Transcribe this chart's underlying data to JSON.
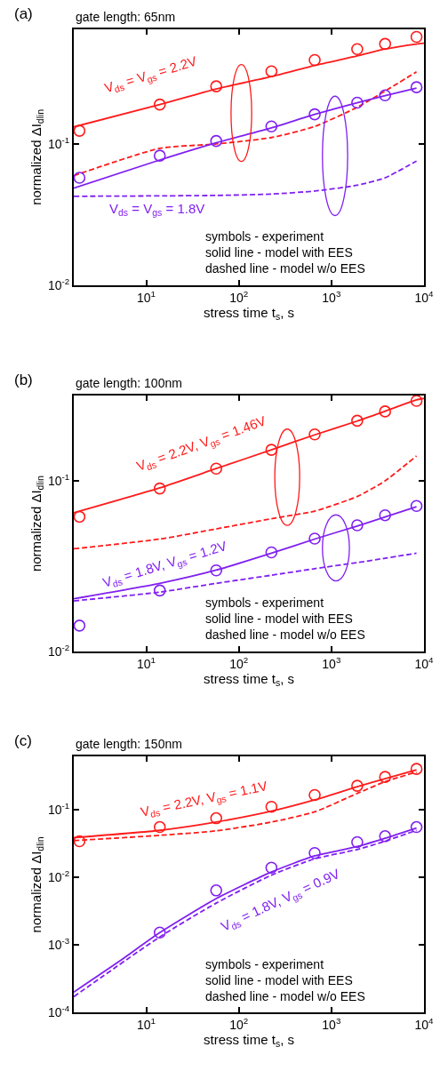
{
  "chart_data": [
    {
      "type": "scatter",
      "title": "gate length: 65nm",
      "xlabel": "stress time t$_{s}$, s",
      "ylabel": "normalized ΔI$_{dlin}$",
      "log": "xy",
      "xlim": [
        1.65,
        10000
      ],
      "xticks": [
        {
          "value": 10,
          "label": "10$^{1}$"
        },
        {
          "value": 100,
          "label": "10$^{2}$"
        },
        {
          "value": 1000,
          "label": "10$^{3}$"
        },
        {
          "value": 10000,
          "label": "10$^{4}$"
        }
      ],
      "ylim": [
        0.01,
        0.65
      ],
      "yticks": [
        {
          "value": 0.01,
          "label": "10$^{-2}$"
        },
        {
          "value": 0.1,
          "label": "10$^{-1}$"
        }
      ],
      "series": [
        {
          "marker": "circle",
          "color": "#ff1a1a",
          "x": [
            1.9,
            14,
            57,
            225,
            660,
            1900,
            3800,
            8300
          ],
          "values": [
            0.124,
            0.19,
            0.256,
            0.327,
            0.393,
            0.469,
            0.511,
            0.573
          ]
        },
        {
          "type": "line",
          "line_style": "solid",
          "color": "#ff1a1a",
          "x": [
            1.65,
            14,
            57,
            225,
            660,
            1900,
            3800,
            8300,
            10000
          ],
          "values": [
            0.132,
            0.19,
            0.245,
            0.3,
            0.36,
            0.42,
            0.47,
            0.51,
            0.516
          ]
        },
        {
          "type": "line",
          "line_style": "dashed",
          "color": "#ff1a1a",
          "x": [
            1.65,
            14,
            57,
            225,
            660,
            1900,
            3800,
            8300
          ],
          "values": [
            0.0596,
            0.093,
            0.1,
            0.111,
            0.133,
            0.182,
            0.237,
            0.324
          ]
        },
        {
          "marker": "circle",
          "color": "#8020f0",
          "x": [
            1.9,
            14,
            57,
            225,
            660,
            1900,
            3800,
            8300
          ],
          "values": [
            0.0576,
            0.0826,
            0.105,
            0.133,
            0.162,
            0.196,
            0.221,
            0.252
          ]
        },
        {
          "type": "line",
          "line_style": "solid",
          "color": "#8020f0",
          "x": [
            1.65,
            14,
            57,
            225,
            660,
            1900,
            3800,
            8300
          ],
          "values": [
            0.0487,
            0.077,
            0.102,
            0.13,
            0.162,
            0.196,
            0.22,
            0.249
          ]
        },
        {
          "type": "line",
          "line_style": "dashed",
          "color": "#8020f0",
          "x": [
            1.65,
            57,
            225,
            660,
            1900,
            3800,
            8300
          ],
          "values": [
            0.0426,
            0.0432,
            0.0442,
            0.0464,
            0.051,
            0.0576,
            0.0757
          ]
        }
      ],
      "annotations": [
        "(a)",
        "V$_{ds}$ = V$_{gs}$ = 2.2V",
        "V$_{ds}$ = V$_{gs}$ = 1.8V",
        "symbols - experiment\nsolid line - model with EES\ndashed line - model w/o EES"
      ]
    },
    {
      "type": "scatter",
      "title": "gate length: 100nm",
      "xlabel": "stress time t$_{s}$, s",
      "ylabel": "normalized ΔI$_{dlin}$",
      "log": "xy",
      "xlim": [
        1.65,
        10000
      ],
      "xticks": [
        {
          "value": 10,
          "label": "10$^{1}$"
        },
        {
          "value": 100,
          "label": "10$^{2}$"
        },
        {
          "value": 1000,
          "label": "10$^{3}$"
        },
        {
          "value": 10000,
          "label": "10$^{4}$"
        }
      ],
      "ylim": [
        0.01,
        0.316
      ],
      "yticks": [
        {
          "value": 0.01,
          "label": "10$^{-2}$"
        },
        {
          "value": 0.1,
          "label": "10$^{-1}$"
        }
      ],
      "series": [
        {
          "marker": "circle",
          "color": "#ff1a1a",
          "x": [
            1.9,
            14,
            57,
            225,
            660,
            1900,
            3800,
            8300
          ],
          "values": [
            0.0616,
            0.0902,
            0.118,
            0.152,
            0.187,
            0.225,
            0.255,
            0.294
          ]
        },
        {
          "type": "line",
          "line_style": "solid",
          "color": "#ff1a1a",
          "x": [
            1.65,
            14,
            57,
            225,
            660,
            1900,
            3800,
            8300,
            10000
          ],
          "values": [
            0.065,
            0.091,
            0.118,
            0.152,
            0.186,
            0.224,
            0.256,
            0.298,
            0.304
          ]
        },
        {
          "type": "line",
          "line_style": "dashed",
          "color": "#ff1a1a",
          "x": [
            1.65,
            14,
            57,
            225,
            660,
            1900,
            3800,
            8300
          ],
          "values": [
            0.04,
            0.0456,
            0.0523,
            0.06,
            0.0665,
            0.081,
            0.1,
            0.14
          ]
        },
        {
          "marker": "circle",
          "color": "#8020f0",
          "x": [
            1.9,
            14,
            57,
            225,
            660,
            1900,
            3800,
            8300
          ],
          "values": [
            0.0142,
            0.0228,
            0.0299,
            0.0381,
            0.0459,
            0.0549,
            0.0629,
            0.0713
          ]
        },
        {
          "type": "line",
          "line_style": "solid",
          "color": "#8020f0",
          "x": [
            1.65,
            14,
            57,
            225,
            660,
            1900,
            3800,
            8300
          ],
          "values": [
            0.0204,
            0.0251,
            0.03,
            0.0377,
            0.0456,
            0.0544,
            0.0614,
            0.0705
          ]
        },
        {
          "type": "line",
          "line_style": "dashed",
          "color": "#8020f0",
          "x": [
            1.65,
            14,
            57,
            225,
            660,
            1900,
            3800,
            8300
          ],
          "values": [
            0.0198,
            0.0223,
            0.0251,
            0.028,
            0.0306,
            0.0332,
            0.0352,
            0.0377
          ]
        }
      ],
      "annotations": [
        "(b)",
        "V$_{ds}$ = 2.2V, V$_{gs}$ = 1.46V",
        "V$_{ds}$ = 1.8V, V$_{gs}$ = 1.2V",
        "symbols - experiment\nsolid line - model with EES\ndashed line - model w/o EES"
      ]
    },
    {
      "type": "scatter",
      "title": "gate length: 150nm",
      "xlabel": "stress time t$_{s}$, s",
      "ylabel": "normalized ΔI$_{dlin}$",
      "log": "xy",
      "xlim": [
        1.65,
        10000
      ],
      "xticks": [
        {
          "value": 10,
          "label": "10$^{1}$"
        },
        {
          "value": 100,
          "label": "10$^{2}$"
        },
        {
          "value": 1000,
          "label": "10$^{3}$"
        },
        {
          "value": 10000,
          "label": "10$^{4}$"
        }
      ],
      "ylim": [
        0.0001,
        0.6
      ],
      "yticks": [
        {
          "value": 0.0001,
          "label": "10$^{-4}$"
        },
        {
          "value": 0.001,
          "label": "10$^{-3}$"
        },
        {
          "value": 0.01,
          "label": "10$^{-2}$"
        },
        {
          "value": 0.1,
          "label": "10$^{-1}$"
        }
      ],
      "series": [
        {
          "marker": "circle",
          "color": "#ff1a1a",
          "x": [
            1.9,
            14,
            57,
            225,
            660,
            1900,
            3800,
            8300
          ],
          "values": [
            0.0339,
            0.0548,
            0.0741,
            0.109,
            0.163,
            0.223,
            0.301,
            0.395
          ]
        },
        {
          "type": "line",
          "line_style": "solid",
          "color": "#ff1a1a",
          "x": [
            1.65,
            14,
            57,
            225,
            660,
            1900,
            3800,
            8300
          ],
          "values": [
            0.0383,
            0.049,
            0.065,
            0.094,
            0.138,
            0.216,
            0.283,
            0.383
          ]
        },
        {
          "type": "line",
          "line_style": "dashed",
          "color": "#ff1a1a",
          "x": [
            1.65,
            14,
            57,
            225,
            660,
            1900,
            3800,
            8300
          ],
          "values": [
            0.0346,
            0.0414,
            0.0482,
            0.065,
            0.092,
            0.172,
            0.256,
            0.356
          ]
        },
        {
          "marker": "circle",
          "color": "#8020f0",
          "x": [
            14,
            57,
            225,
            660,
            1900,
            3800,
            8300
          ],
          "values": [
            0.00152,
            0.00637,
            0.0138,
            0.0227,
            0.0329,
            0.0402,
            0.0548
          ]
        },
        {
          "type": "line",
          "line_style": "solid",
          "color": "#8020f0",
          "x": [
            1.65,
            5,
            14,
            57,
            225,
            660,
            1900,
            3800,
            8300
          ],
          "values": [
            0.000201,
            0.00056,
            0.00152,
            0.00482,
            0.0119,
            0.0206,
            0.0283,
            0.0375,
            0.0532
          ]
        },
        {
          "type": "line",
          "line_style": "dashed",
          "color": "#8020f0",
          "x": [
            1.65,
            14,
            57,
            225,
            660,
            1900,
            3800,
            8300
          ],
          "values": [
            0.000172,
            0.00131,
            0.00414,
            0.0107,
            0.0186,
            0.0256,
            0.0339,
            0.0491
          ]
        }
      ],
      "annotations": [
        "(c)",
        "V$_{ds}$ = 2.2V, V$_{gs}$ = 1.1V",
        "V$_{ds}$ = 1.8V, V$_{gs}$ = 0.9V",
        "symbols - experiment\nsolid line - model with EES\ndashed line - model w/o EES"
      ]
    }
  ]
}
